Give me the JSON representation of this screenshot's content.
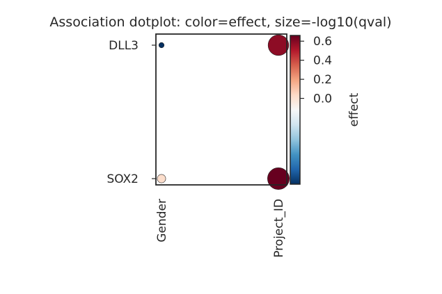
{
  "chart_data": {
    "type": "scatter",
    "title": "Association dotplot: color=effect, size=-log10(qval)",
    "x_categories": [
      "Gender",
      "Project_ID"
    ],
    "y_categories": [
      "DLL3",
      "SOX2"
    ],
    "points": [
      {
        "x": "Gender",
        "y": "DLL3",
        "effect": -0.9,
        "neg_log10_qval": 0.5
      },
      {
        "x": "Project_ID",
        "y": "DLL3",
        "effect": 0.58,
        "neg_log10_qval": 9
      },
      {
        "x": "Gender",
        "y": "SOX2",
        "effect": 0.02,
        "neg_log10_qval": 1.5
      },
      {
        "x": "Project_ID",
        "y": "SOX2",
        "effect": 0.66,
        "neg_log10_qval": 10
      }
    ],
    "colorbar": {
      "label": "effect",
      "colormap": "RdBu_r",
      "range": [
        -0.9,
        0.66
      ],
      "ticks": [
        0.0,
        0.2,
        0.4,
        0.6
      ],
      "tick_labels": [
        "0.0",
        "0.2",
        "0.4",
        "0.6"
      ]
    },
    "grid": false
  }
}
